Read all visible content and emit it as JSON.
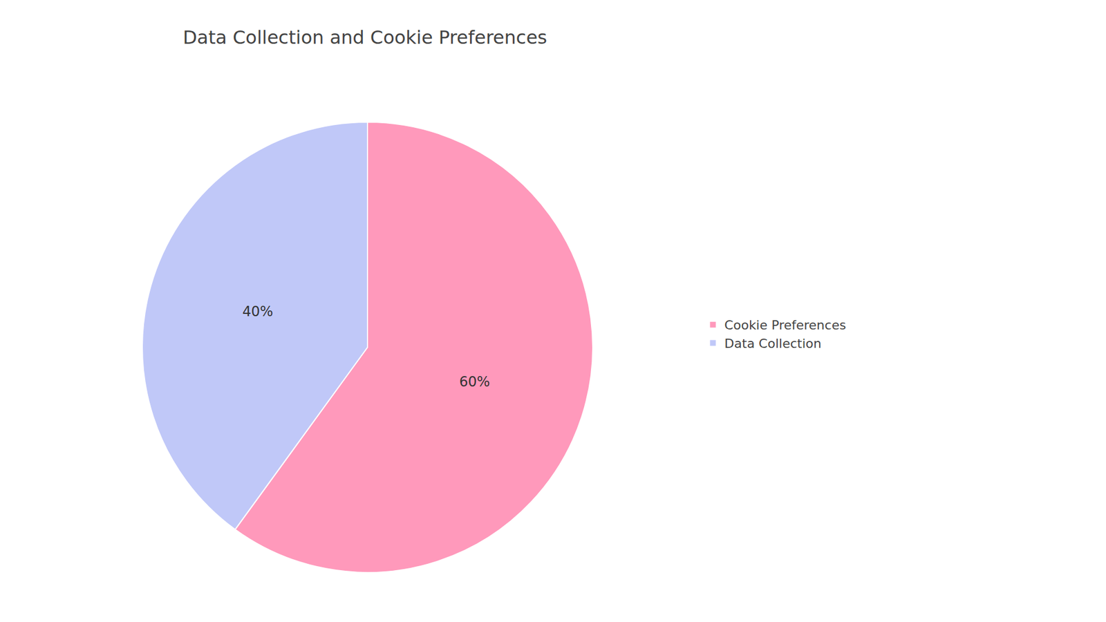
{
  "chart_data": {
    "type": "pie",
    "title": "Data Collection and Cookie Preferences",
    "categories": [
      "Cookie Preferences",
      "Data Collection"
    ],
    "values": [
      60,
      40
    ],
    "value_labels": [
      "60%",
      "40%"
    ],
    "data_labels": true,
    "colors": [
      "#ff99bb",
      "#c0c8f8"
    ],
    "legend": "right"
  }
}
